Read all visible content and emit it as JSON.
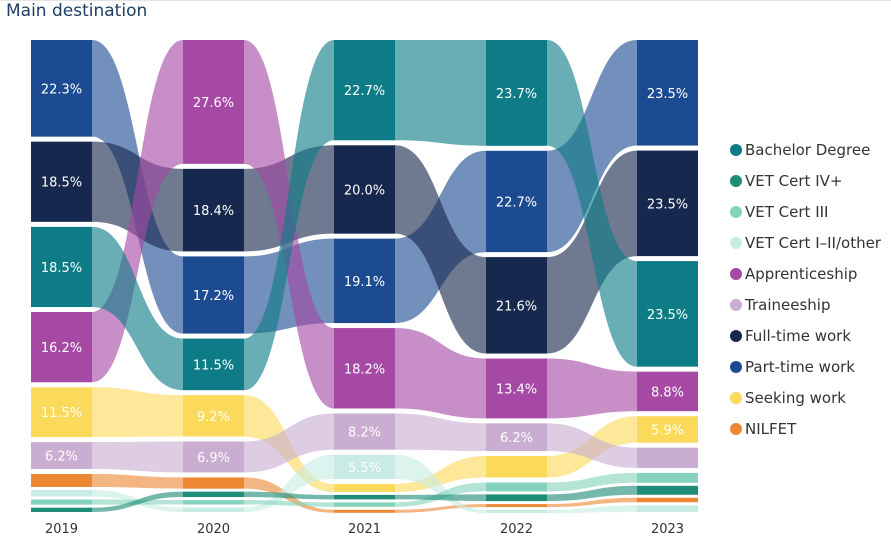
{
  "page_title": "Main destination",
  "chart_data": {
    "type": "sankey",
    "title": "Main destination",
    "years": [
      "2019",
      "2020",
      "2021",
      "2022",
      "2023"
    ],
    "categories": [
      {
        "id": "bachelor",
        "name": "Bachelor Degree",
        "color": "#0d7c87"
      },
      {
        "id": "vet4",
        "name": "VET Cert IV+",
        "color": "#1f8c77"
      },
      {
        "id": "vet3",
        "name": "VET Cert III",
        "color": "#86d3bd"
      },
      {
        "id": "vet12",
        "name": "VET Cert I–II/other",
        "color": "#c8ebe3"
      },
      {
        "id": "apprenticeship",
        "name": "Apprenticeship",
        "color": "#a549a4"
      },
      {
        "id": "traineeship",
        "name": "Traineeship",
        "color": "#c9aed1"
      },
      {
        "id": "fulltime",
        "name": "Full-time work",
        "color": "#16284e"
      },
      {
        "id": "parttime",
        "name": "Part-time work",
        "color": "#1d4b91"
      },
      {
        "id": "seeking",
        "name": "Seeking work",
        "color": "#fbd95a"
      },
      {
        "id": "nilfet",
        "name": "NILFET",
        "color": "#ec8734"
      }
    ],
    "columns": [
      {
        "year": "2019",
        "nodes": [
          {
            "cat": "parttime",
            "value": 22.3,
            "label": "22.3%"
          },
          {
            "cat": "fulltime",
            "value": 18.5,
            "label": "18.5%"
          },
          {
            "cat": "bachelor",
            "value": 18.5,
            "label": "18.5%"
          },
          {
            "cat": "apprenticeship",
            "value": 16.2,
            "label": "16.2%"
          },
          {
            "cat": "seeking",
            "value": 11.5,
            "label": "11.5%"
          },
          {
            "cat": "traineeship",
            "value": 6.2,
            "label": "6.2%"
          },
          {
            "cat": "nilfet",
            "value": 3.0,
            "label": ""
          },
          {
            "cat": "vet12",
            "value": 1.5,
            "label": ""
          },
          {
            "cat": "vet3",
            "value": 1.2,
            "label": ""
          },
          {
            "cat": "vet4",
            "value": 1.0,
            "label": ""
          }
        ]
      },
      {
        "year": "2020",
        "nodes": [
          {
            "cat": "apprenticeship",
            "value": 27.6,
            "label": "27.6%"
          },
          {
            "cat": "fulltime",
            "value": 18.4,
            "label": "18.4%"
          },
          {
            "cat": "parttime",
            "value": 17.2,
            "label": "17.2%"
          },
          {
            "cat": "bachelor",
            "value": 11.5,
            "label": "11.5%"
          },
          {
            "cat": "seeking",
            "value": 9.2,
            "label": "9.2%"
          },
          {
            "cat": "traineeship",
            "value": 6.9,
            "label": "6.9%"
          },
          {
            "cat": "nilfet",
            "value": 2.5,
            "label": ""
          },
          {
            "cat": "vet4",
            "value": 1.2,
            "label": ""
          },
          {
            "cat": "vet3",
            "value": 1.0,
            "label": ""
          },
          {
            "cat": "vet12",
            "value": 1.0,
            "label": ""
          }
        ]
      },
      {
        "year": "2021",
        "nodes": [
          {
            "cat": "bachelor",
            "value": 22.7,
            "label": "22.7%"
          },
          {
            "cat": "fulltime",
            "value": 20.0,
            "label": "20.0%"
          },
          {
            "cat": "parttime",
            "value": 19.1,
            "label": "19.1%"
          },
          {
            "cat": "apprenticeship",
            "value": 18.2,
            "label": "18.2%"
          },
          {
            "cat": "traineeship",
            "value": 8.2,
            "label": "8.2%"
          },
          {
            "cat": "vet12",
            "value": 5.5,
            "label": "5.5%"
          },
          {
            "cat": "seeking",
            "value": 1.8,
            "label": ""
          },
          {
            "cat": "vet4",
            "value": 1.0,
            "label": ""
          },
          {
            "cat": "vet3",
            "value": 1.0,
            "label": ""
          },
          {
            "cat": "nilfet",
            "value": 0.5,
            "label": ""
          }
        ]
      },
      {
        "year": "2022",
        "nodes": [
          {
            "cat": "bachelor",
            "value": 23.7,
            "label": "23.7%"
          },
          {
            "cat": "parttime",
            "value": 22.7,
            "label": "22.7%"
          },
          {
            "cat": "fulltime",
            "value": 21.6,
            "label": "21.6%"
          },
          {
            "cat": "apprenticeship",
            "value": 13.4,
            "label": "13.4%"
          },
          {
            "cat": "traineeship",
            "value": 6.2,
            "label": "6.2%"
          },
          {
            "cat": "seeking",
            "value": 4.8,
            "label": ""
          },
          {
            "cat": "vet3",
            "value": 2.0,
            "label": ""
          },
          {
            "cat": "vet4",
            "value": 1.5,
            "label": ""
          },
          {
            "cat": "nilfet",
            "value": 0.6,
            "label": ""
          },
          {
            "cat": "vet12",
            "value": 0.5,
            "label": ""
          }
        ]
      },
      {
        "year": "2023",
        "nodes": [
          {
            "cat": "parttime",
            "value": 23.5,
            "label": "23.5%"
          },
          {
            "cat": "fulltime",
            "value": 23.5,
            "label": "23.5%"
          },
          {
            "cat": "bachelor",
            "value": 23.5,
            "label": "23.5%"
          },
          {
            "cat": "apprenticeship",
            "value": 8.8,
            "label": "8.8%"
          },
          {
            "cat": "seeking",
            "value": 5.9,
            "label": "5.9%"
          },
          {
            "cat": "traineeship",
            "value": 4.5,
            "label": ""
          },
          {
            "cat": "vet3",
            "value": 2.2,
            "label": ""
          },
          {
            "cat": "vet4",
            "value": 2.0,
            "label": ""
          },
          {
            "cat": "nilfet",
            "value": 1.0,
            "label": ""
          },
          {
            "cat": "vet12",
            "value": 1.5,
            "label": ""
          }
        ]
      }
    ]
  }
}
